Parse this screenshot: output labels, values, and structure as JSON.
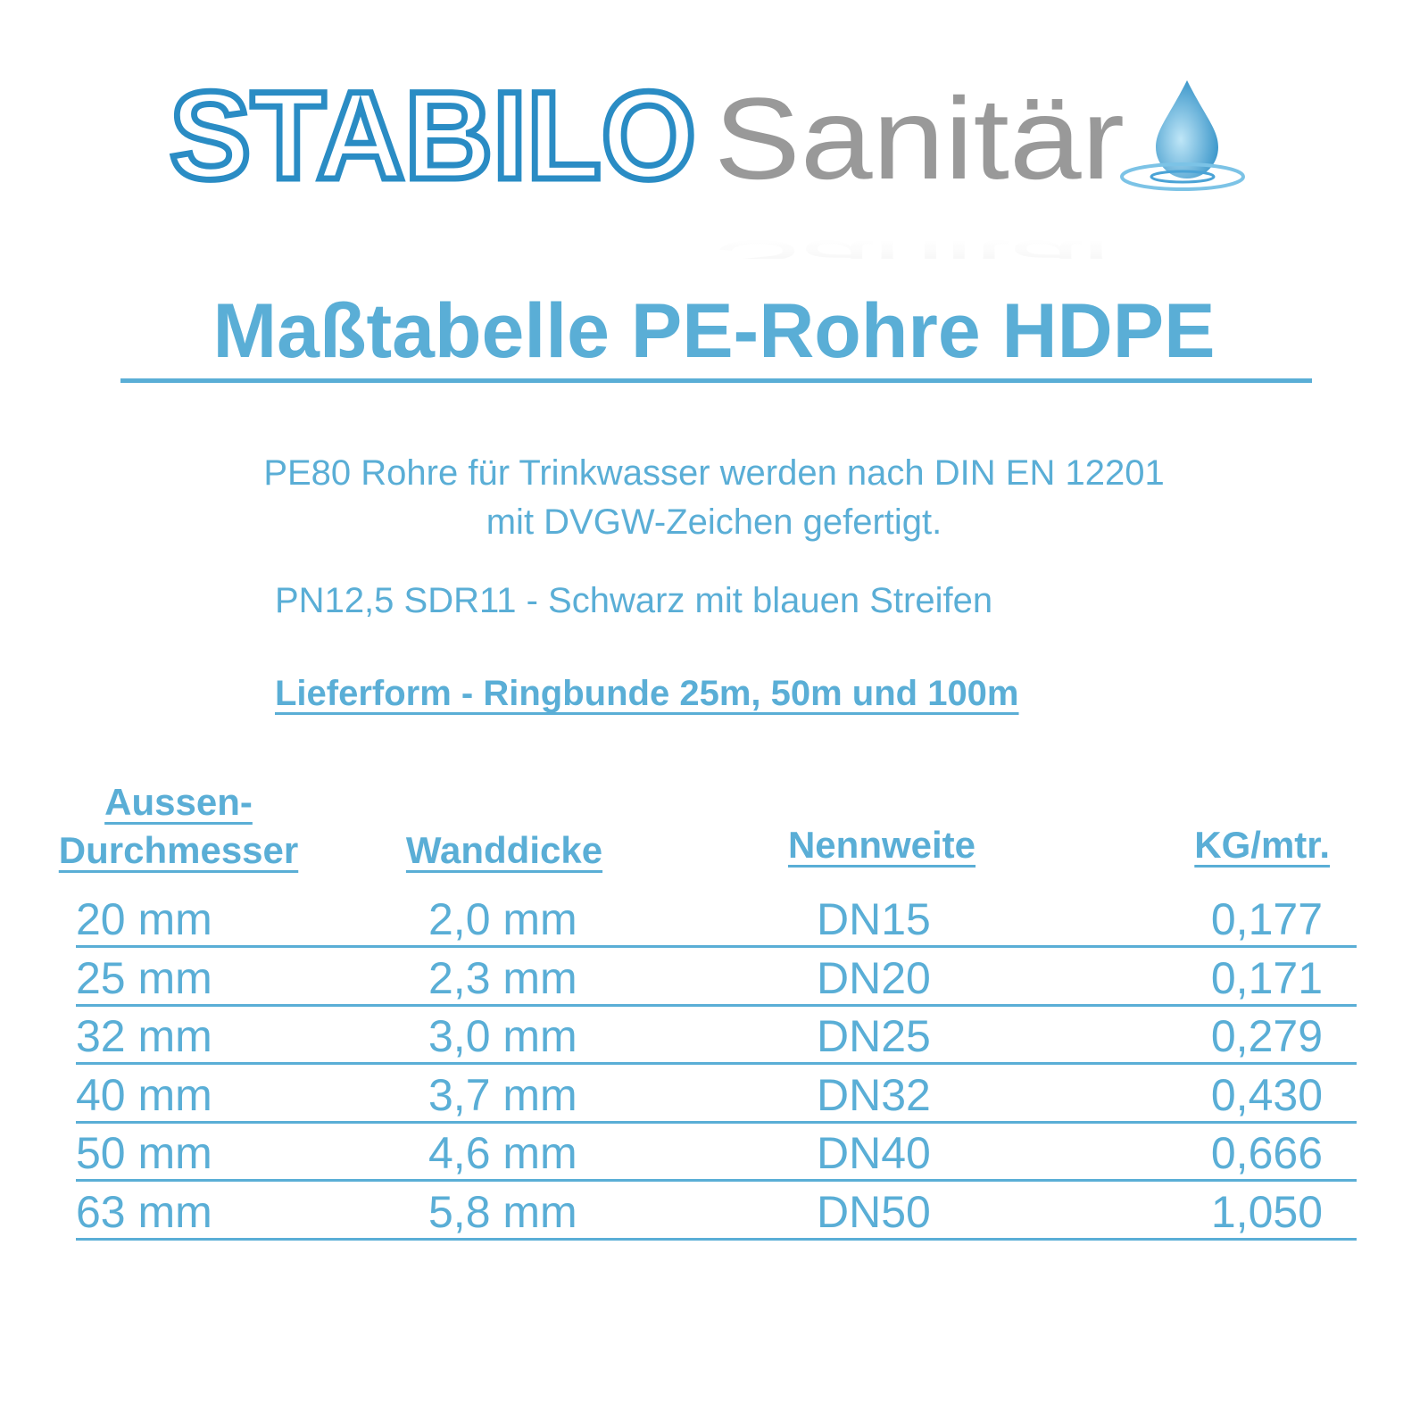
{
  "logo": {
    "brand": "STABILO",
    "suffix": "Sanitär"
  },
  "title": "Maßtabelle PE-Rohre HDPE",
  "intro": [
    "PE80 Rohre für Trinkwasser werden nach DIN EN 12201",
    "mit DVGW-Zeichen gefertigt."
  ],
  "spec": "PN12,5 SDR11 - Schwarz mit blauen Streifen",
  "delivery": "Lieferform - Ringbunde 25m, 50m und 100m",
  "table": {
    "headers": [
      [
        "Aussen-",
        "Durchmesser"
      ],
      [
        "Wanddicke"
      ],
      [
        "Nennweite"
      ],
      [
        "KG/mtr."
      ]
    ],
    "rows": [
      [
        "20 mm",
        "2,0 mm",
        "DN15",
        "0,177"
      ],
      [
        "25 mm",
        "2,3 mm",
        "DN20",
        "0,171"
      ],
      [
        "32 mm",
        "3,0 mm",
        "DN25",
        "0,279"
      ],
      [
        "40 mm",
        "3,7 mm",
        "DN32",
        "0,430"
      ],
      [
        "50 mm",
        "4,6 mm",
        "DN40",
        "0,666"
      ],
      [
        "63 mm",
        "5,8 mm",
        "DN50",
        "1,050"
      ]
    ]
  }
}
